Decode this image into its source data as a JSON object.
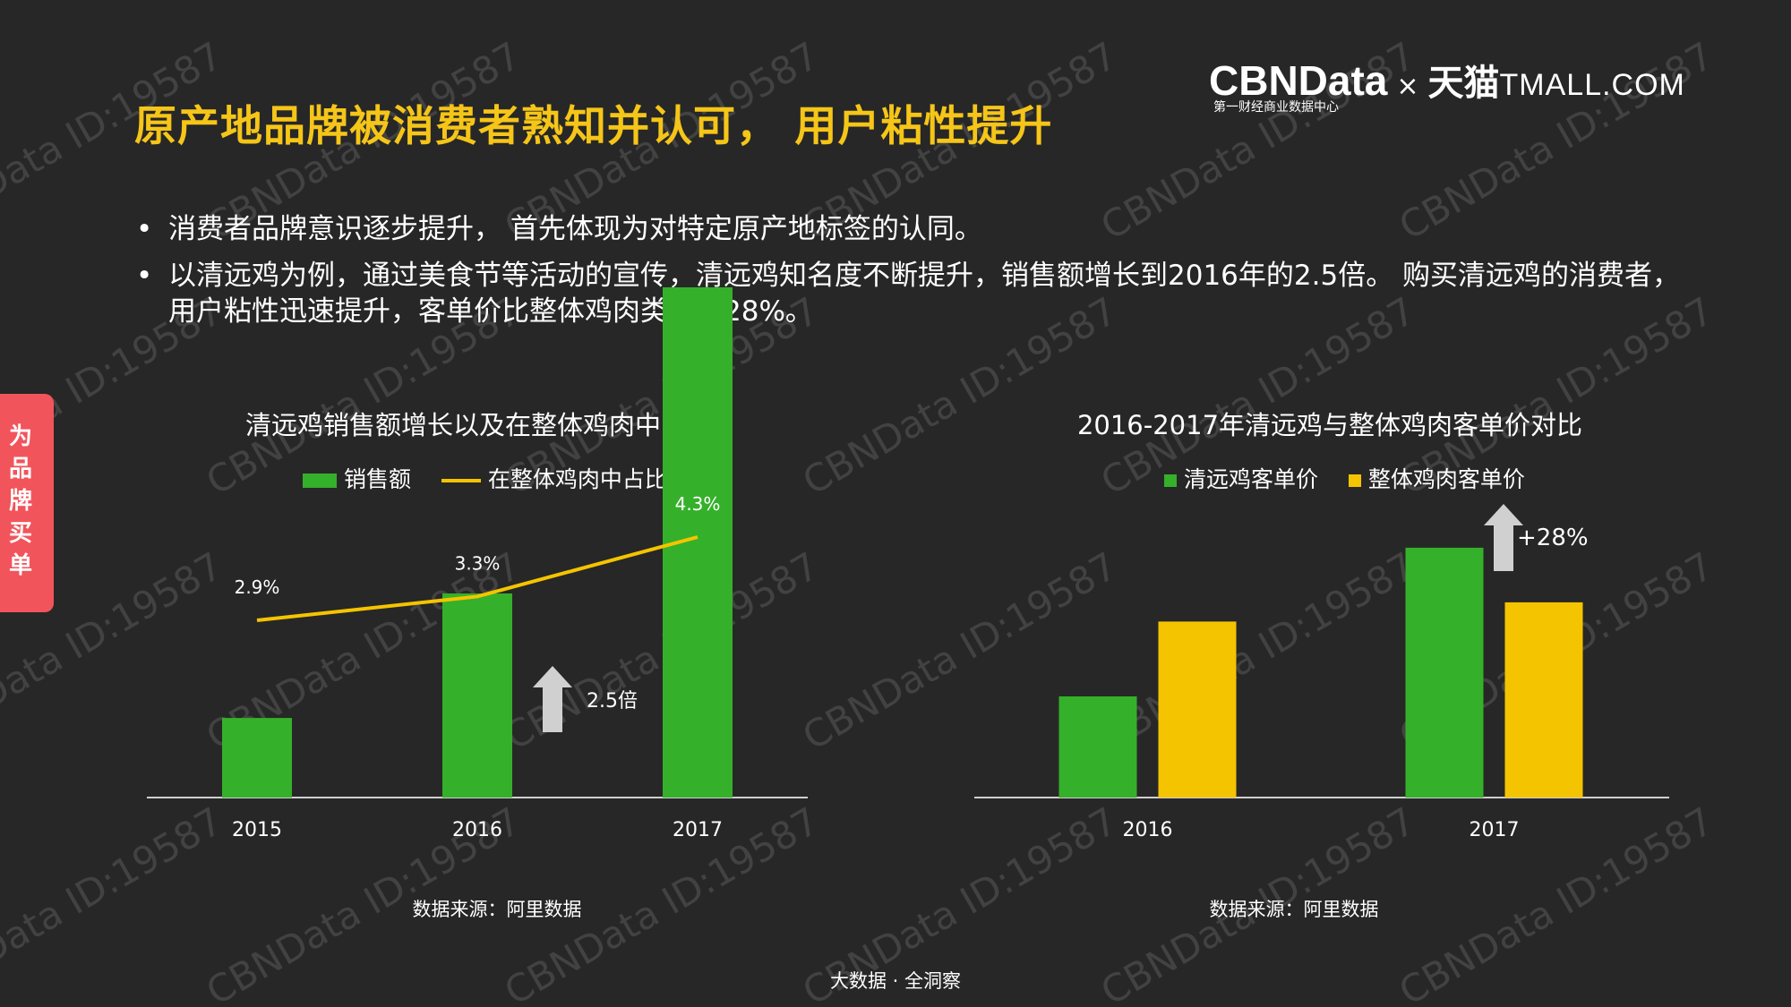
{
  "title": "原产地品牌被消费者熟知并认可， 用户粘性提升",
  "logo": {
    "brand": "CBNData",
    "subtitle": "第一财经商业数据中心",
    "times": "×",
    "tmall_cn": "天猫",
    "tmall_en": "TMALL.COM"
  },
  "side_tab": "为品牌买单",
  "bullets": [
    "消费者品牌意识逐步提升， 首先体现为对特定原产地标签的认同。",
    "以清远鸡为例，通过美食节等活动的宣传，清远鸡知名度不断提升，销售额增长到2016年的2.5倍。 购买清远鸡的消费者，用户粘性迅速提升，客单价比整体鸡肉类高出28%。"
  ],
  "bullet_symbol": "•",
  "watermark": "CBNData ID:19587",
  "footer": "大数据 · 全洞察",
  "colors": {
    "green": "#35b02a",
    "yellow": "#f5c400",
    "title_yellow": "#f5c518",
    "arrow": "#d0d0d0",
    "tab": "#f2545b"
  },
  "chart_data": [
    {
      "type": "bar",
      "title": "清远鸡销售额增长以及在整体鸡肉中占比",
      "categories": [
        "2015",
        "2016",
        "2017"
      ],
      "series": [
        {
          "name": "销售额",
          "kind": "bar",
          "values": [
            0.39,
            1.0,
            2.5
          ]
        },
        {
          "name": "在整体鸡肉中占比",
          "kind": "line",
          "values": [
            2.9,
            3.3,
            4.3
          ],
          "labels": [
            "2.9%",
            "3.3%",
            "4.3%"
          ]
        }
      ],
      "annotation": "2.5倍",
      "source": "数据来源：阿里数据"
    },
    {
      "type": "bar",
      "title": "2016-2017年清远鸡与整体鸡肉客单价对比",
      "categories": [
        "2016",
        "2017"
      ],
      "series": [
        {
          "name": "清远鸡客单价",
          "values": [
            1.0,
            2.47
          ]
        },
        {
          "name": "整体鸡肉客单价",
          "values": [
            1.74,
            1.93
          ]
        }
      ],
      "annotation": "+28%",
      "source": "数据来源：阿里数据"
    }
  ]
}
